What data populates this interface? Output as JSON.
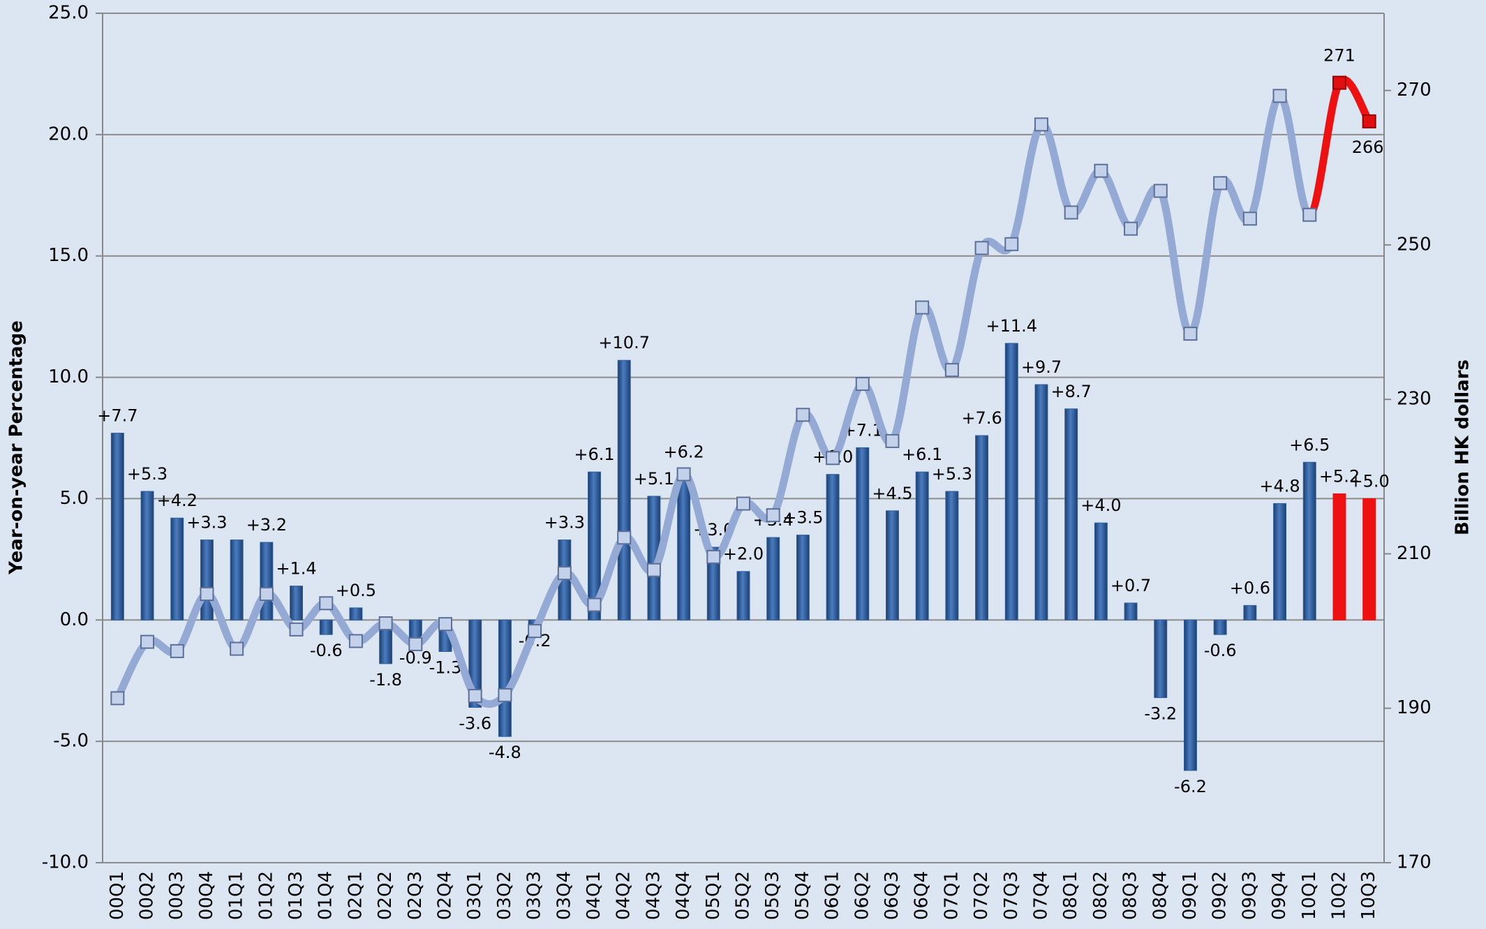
{
  "chart_data": {
    "type": "bar",
    "categories": [
      "00Q1",
      "00Q2",
      "00Q3",
      "00Q4",
      "01Q1",
      "01Q2",
      "01Q3",
      "01Q4",
      "02Q1",
      "02Q2",
      "02Q3",
      "02Q4",
      "03Q1",
      "03Q2",
      "03Q3",
      "03Q4",
      "04Q1",
      "04Q2",
      "04Q3",
      "04Q4",
      "05Q1",
      "05Q2",
      "05Q3",
      "05Q4",
      "06Q1",
      "06Q2",
      "06Q3",
      "06Q4",
      "07Q1",
      "07Q2",
      "07Q3",
      "07Q4",
      "08Q1",
      "08Q2",
      "08Q3",
      "08Q4",
      "09Q1",
      "09Q2",
      "09Q3",
      "09Q4",
      "10Q1",
      "10Q2",
      "10Q3"
    ],
    "series": [
      {
        "type": "bar",
        "values": [
          7.7,
          5.3,
          4.2,
          3.3,
          3.3,
          3.2,
          1.4,
          -0.6,
          0.5,
          -1.8,
          -0.9,
          -1.3,
          -3.6,
          -4.8,
          -0.2,
          3.3,
          6.1,
          10.7,
          5.1,
          6.2,
          3.0,
          2.0,
          3.4,
          3.5,
          6.0,
          7.1,
          4.5,
          6.1,
          5.3,
          7.6,
          11.4,
          9.7,
          8.7,
          4.0,
          0.7,
          -3.2,
          -6.2,
          -0.6,
          0.6,
          4.8,
          6.5,
          5.2,
          5.0
        ],
        "value_labels": [
          "+7.7",
          "+5.3",
          "+4.2",
          "+3.3",
          null,
          "+3.2",
          "+1.4",
          "-0.6",
          "+0.5",
          "-1.8",
          "-0.9",
          "-1.3",
          "-3.6",
          "-4.8",
          "-0.2",
          "+3.3",
          "+6.1",
          "+10.7",
          "+5.1",
          "+6.2",
          "+3.0",
          "+2.0",
          "+3.4",
          "+3.5",
          "+6.0",
          "+7.1",
          "+4.5",
          "+6.1",
          "+5.3",
          "+7.6",
          "+11.4",
          "+9.7",
          "+8.7",
          "+4.0",
          "+0.7",
          "-3.2",
          "-6.2",
          "-0.6",
          "+0.6",
          "+4.8",
          "+6.5",
          "+5.2",
          "+5.0"
        ],
        "colors": [
          "#2f5f9e",
          "#2f5f9e",
          "#2f5f9e",
          "#2f5f9e",
          "#2f5f9e",
          "#2f5f9e",
          "#2f5f9e",
          "#2f5f9e",
          "#2f5f9e",
          "#2f5f9e",
          "#2f5f9e",
          "#2f5f9e",
          "#2f5f9e",
          "#2f5f9e",
          "#2f5f9e",
          "#2f5f9e",
          "#2f5f9e",
          "#2f5f9e",
          "#2f5f9e",
          "#2f5f9e",
          "#2f5f9e",
          "#2f5f9e",
          "#2f5f9e",
          "#2f5f9e",
          "#2f5f9e",
          "#2f5f9e",
          "#2f5f9e",
          "#2f5f9e",
          "#2f5f9e",
          "#2f5f9e",
          "#2f5f9e",
          "#2f5f9e",
          "#2f5f9e",
          "#2f5f9e",
          "#2f5f9e",
          "#2f5f9e",
          "#2f5f9e",
          "#2f5f9e",
          "#2f5f9e",
          "#2f5f9e",
          "#2f5f9e",
          "#ee1111",
          "#ee1111"
        ]
      },
      {
        "type": "line",
        "axis": "y2",
        "values": [
          191.3,
          198.6,
          197.4,
          204.8,
          197.7,
          204.8,
          200.2,
          203.6,
          198.7,
          201.0,
          198.3,
          200.9,
          191.6,
          191.7,
          200.0,
          207.5,
          203.4,
          212.1,
          207.9,
          220.3,
          209.6,
          216.5,
          215.0,
          228.0,
          222.4,
          232.0,
          224.6,
          241.9,
          233.8,
          249.6,
          250.1,
          265.6,
          254.2,
          259.6,
          252.1,
          257.0,
          238.5,
          258.0,
          253.4,
          269.3,
          253.9,
          271,
          266
        ],
        "value_labels": [
          null,
          null,
          null,
          null,
          null,
          null,
          null,
          null,
          null,
          null,
          null,
          null,
          null,
          null,
          null,
          null,
          null,
          null,
          null,
          null,
          null,
          null,
          null,
          null,
          null,
          null,
          null,
          null,
          null,
          null,
          null,
          null,
          null,
          null,
          null,
          null,
          null,
          null,
          null,
          null,
          null,
          "271",
          "266"
        ],
        "colors": [
          "#94aad4",
          "#94aad4",
          "#94aad4",
          "#94aad4",
          "#94aad4",
          "#94aad4",
          "#94aad4",
          "#94aad4",
          "#94aad4",
          "#94aad4",
          "#94aad4",
          "#94aad4",
          "#94aad4",
          "#94aad4",
          "#94aad4",
          "#94aad4",
          "#94aad4",
          "#94aad4",
          "#94aad4",
          "#94aad4",
          "#94aad4",
          "#94aad4",
          "#94aad4",
          "#94aad4",
          "#94aad4",
          "#94aad4",
          "#94aad4",
          "#94aad4",
          "#94aad4",
          "#94aad4",
          "#94aad4",
          "#94aad4",
          "#94aad4",
          "#94aad4",
          "#94aad4",
          "#94aad4",
          "#94aad4",
          "#94aad4",
          "#94aad4",
          "#94aad4",
          "#94aad4",
          "#ee1111",
          "#ee1111"
        ]
      }
    ],
    "ylabel": "Year-on-year Percentage",
    "y2label": "Billion HK dollars",
    "ylim": [
      -10,
      25
    ],
    "yticks": [
      {
        "value": -10,
        "label": "-10.0"
      },
      {
        "value": -5,
        "label": "-5.0"
      },
      {
        "value": 0,
        "label": "0.0"
      },
      {
        "value": 5,
        "label": "5.0"
      },
      {
        "value": 10,
        "label": "10.0"
      },
      {
        "value": 15,
        "label": "15.0"
      },
      {
        "value": 20,
        "label": "20.0"
      },
      {
        "value": 25,
        "label": "25.0"
      }
    ],
    "y2lim": [
      170,
      280
    ],
    "y2ticks": [
      170,
      190,
      210,
      230,
      250,
      270
    ],
    "grid": true
  }
}
